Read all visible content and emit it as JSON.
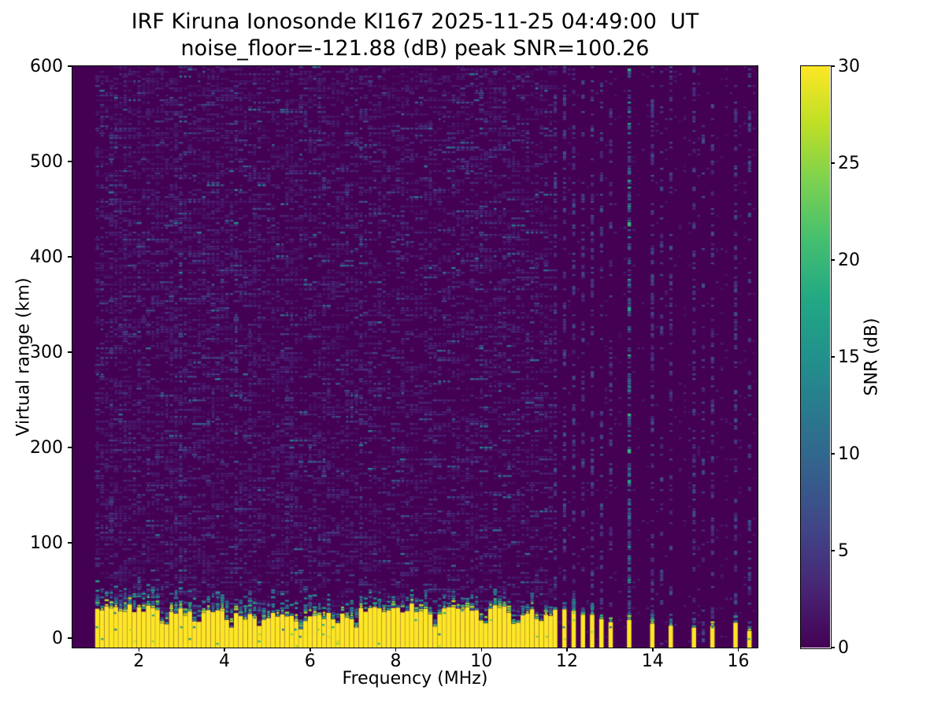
{
  "chart_data": {
    "type": "heatmap",
    "title": "IRF Kiruna Ionosonde KI167 2025-11-25 04:49:00  UT",
    "subtitle": "noise_floor=-121.88 (dB) peak SNR=100.26",
    "xlabel": "Frequency (MHz)",
    "ylabel": "Virtual range (km)",
    "xlim": [
      0.45,
      16.45
    ],
    "ylim": [
      -10,
      600
    ],
    "x_ticks": [
      2,
      4,
      6,
      8,
      10,
      12,
      14,
      16
    ],
    "y_ticks": [
      0,
      100,
      200,
      300,
      400,
      500,
      600
    ],
    "colorbar": {
      "label": "SNR (dB)",
      "ticks": [
        0,
        5,
        10,
        15,
        20,
        25,
        30
      ],
      "vmin": 0,
      "vmax": 30,
      "colormap": "viridis"
    },
    "noise_floor_db": -121.88,
    "peak_snr_db": 100.26,
    "colors": {
      "background_min_snr": "#440154",
      "peak_snr": "#fde725",
      "figure_background": "#ffffff",
      "text": "#000000"
    },
    "features": {
      "data_start_mhz": 0.98,
      "background_noise_snr_db": [
        0,
        8
      ],
      "ground_band": {
        "f_start": 0.98,
        "f_end": 11.57,
        "top_km_mean": 29,
        "cap_km_max": 22,
        "snr_db": 30
      },
      "band_notches_mhz": [
        2.55,
        3.3,
        4.1,
        4.8,
        5.75,
        6.55,
        7.0,
        8.85,
        10.0,
        10.75,
        11.3
      ],
      "interference_bars": [
        {
          "f": 11.72,
          "h": 30
        },
        {
          "f": 11.94,
          "h": 29
        },
        {
          "f": 12.16,
          "h": 28
        },
        {
          "f": 12.38,
          "h": 26
        },
        {
          "f": 12.6,
          "h": 24
        },
        {
          "f": 12.82,
          "h": 21
        },
        {
          "f": 13.04,
          "h": 17
        },
        {
          "f": 13.44,
          "h": 20
        },
        {
          "f": 13.95,
          "h": 16
        },
        {
          "f": 14.42,
          "h": 12
        },
        {
          "f": 14.93,
          "h": 10
        },
        {
          "f": 15.45,
          "h": 12
        },
        {
          "f": 15.93,
          "h": 15
        },
        {
          "f": 16.28,
          "h": 7
        }
      ],
      "rfi_columns": [
        {
          "f": 11.72,
          "p": 0.3
        },
        {
          "f": 11.94,
          "p": 0.28
        },
        {
          "f": 12.16,
          "p": 0.3
        },
        {
          "f": 12.38,
          "p": 0.26
        },
        {
          "f": 12.6,
          "p": 0.3
        },
        {
          "f": 12.82,
          "p": 0.26
        },
        {
          "f": 13.04,
          "p": 0.24
        },
        {
          "f": 13.44,
          "p": 0.55,
          "strong": true
        },
        {
          "f": 13.95,
          "p": 0.34
        },
        {
          "f": 14.2,
          "p": 0.16
        },
        {
          "f": 14.42,
          "p": 0.26
        },
        {
          "f": 14.93,
          "p": 0.3
        },
        {
          "f": 15.2,
          "p": 0.14
        },
        {
          "f": 15.45,
          "p": 0.28
        },
        {
          "f": 15.93,
          "p": 0.3
        },
        {
          "f": 16.28,
          "p": 0.22
        },
        {
          "f": 2.95,
          "p": 0.5,
          "faint": true
        },
        {
          "f": 4.25,
          "p": 0.45,
          "faint": true
        },
        {
          "f": 7.17,
          "p": 0.55,
          "faint": true
        },
        {
          "f": 10.05,
          "p": 0.45,
          "faint": true
        }
      ]
    }
  }
}
